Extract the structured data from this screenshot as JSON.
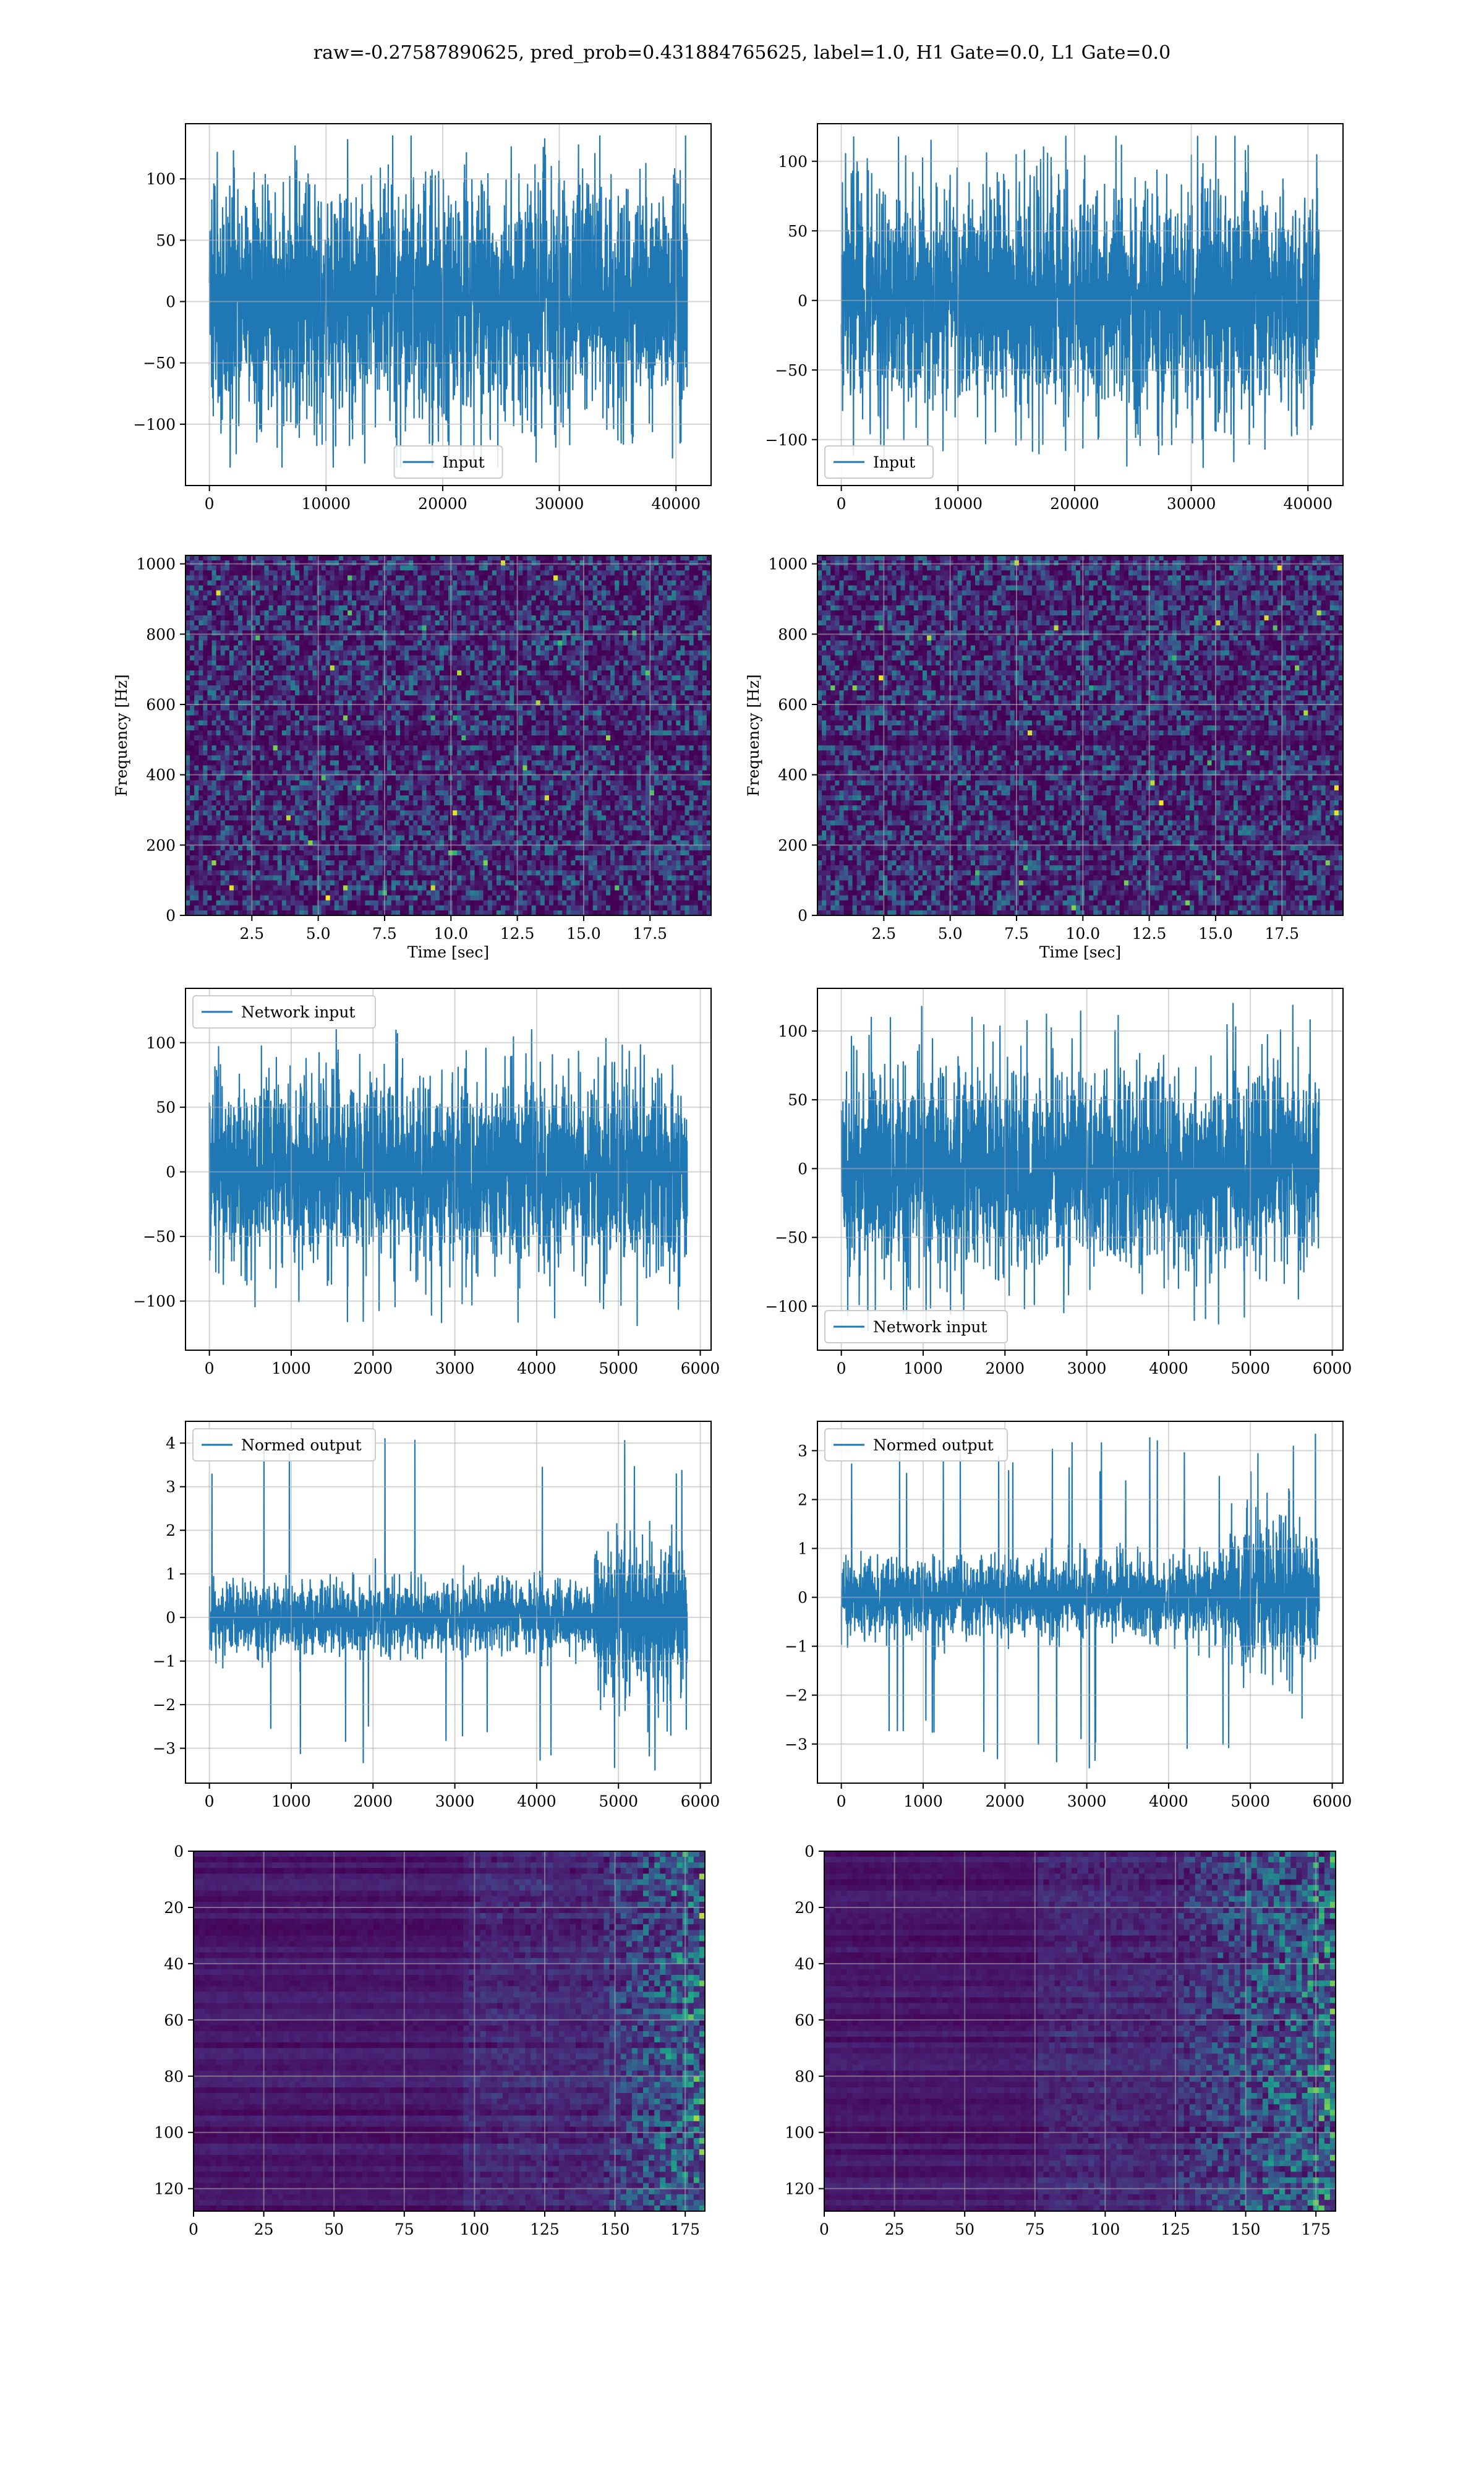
{
  "figure": {
    "title": "raw=-0.27587890625, pred_prob=0.431884765625, label=1.0, H1 Gate=0.0, L1 Gate=0.0",
    "line_color": "#1f77b4",
    "colormap": "viridis"
  },
  "chart_data": [
    {
      "id": "h1-input",
      "type": "line",
      "series": [
        {
          "name": "Input"
        }
      ],
      "legend": "lower-center",
      "x_range": [
        0,
        40960
      ],
      "xlim": [
        -2048,
        43008
      ],
      "ylim": [
        -150,
        145
      ],
      "amplitude": 48,
      "peak_range": [
        -135,
        135
      ],
      "xticks": [
        0,
        10000,
        20000,
        30000,
        40000
      ],
      "yticks": [
        -100,
        -50,
        0,
        50,
        100
      ],
      "xtick_labels": [
        "0",
        "10000",
        "20000",
        "30000",
        "40000"
      ],
      "ytick_labels": [
        "−100",
        "−50",
        "0",
        "50",
        "100"
      ],
      "grid": true
    },
    {
      "id": "l1-input",
      "type": "line",
      "series": [
        {
          "name": "Input"
        }
      ],
      "legend": "lower-left",
      "x_range": [
        0,
        40960
      ],
      "xlim": [
        -2048,
        43008
      ],
      "ylim": [
        -133,
        127
      ],
      "amplitude": 40,
      "peak_range": [
        -120,
        118
      ],
      "xticks": [
        0,
        10000,
        20000,
        30000,
        40000
      ],
      "yticks": [
        -100,
        -50,
        0,
        50,
        100
      ],
      "xtick_labels": [
        "0",
        "10000",
        "20000",
        "30000",
        "40000"
      ],
      "ytick_labels": [
        "−100",
        "−50",
        "0",
        "50",
        "100"
      ],
      "grid": true
    },
    {
      "id": "h1-spectrogram",
      "type": "heatmap",
      "xlabel": "Time [sec]",
      "ylabel": "Frequency [Hz]",
      "xlim": [
        0,
        19.8
      ],
      "ylim": [
        0,
        1024
      ],
      "xticks": [
        2.5,
        5,
        7.5,
        10,
        12.5,
        15,
        17.5
      ],
      "yticks": [
        0,
        200,
        400,
        600,
        800,
        1000
      ],
      "xtick_labels": [
        "2.5",
        "5.0",
        "7.5",
        "10.0",
        "12.5",
        "15.0",
        "17.5"
      ],
      "ytick_labels": [
        "0",
        "200",
        "400",
        "600",
        "800",
        "1000"
      ],
      "grid": true
    },
    {
      "id": "l1-spectrogram",
      "type": "heatmap",
      "xlabel": "Time [sec]",
      "ylabel": "Frequency [Hz]",
      "xlim": [
        0,
        19.8
      ],
      "ylim": [
        0,
        1024
      ],
      "xticks": [
        2.5,
        5,
        7.5,
        10,
        12.5,
        15,
        17.5
      ],
      "yticks": [
        0,
        200,
        400,
        600,
        800,
        1000
      ],
      "xtick_labels": [
        "2.5",
        "5.0",
        "7.5",
        "10.0",
        "12.5",
        "15.0",
        "17.5"
      ],
      "ytick_labels": [
        "0",
        "200",
        "400",
        "600",
        "800",
        "1000"
      ],
      "grid": true
    },
    {
      "id": "h1-network-input",
      "type": "line",
      "series": [
        {
          "name": "Network input"
        }
      ],
      "legend": "upper-left",
      "x_range": [
        0,
        5840
      ],
      "xlim": [
        -292,
        6132
      ],
      "ylim": [
        -138,
        142
      ],
      "amplitude": 35,
      "peak_range": [
        -120,
        110
      ],
      "xticks": [
        0,
        1000,
        2000,
        3000,
        4000,
        5000,
        6000
      ],
      "yticks": [
        -100,
        -50,
        0,
        50,
        100
      ],
      "xtick_labels": [
        "0",
        "1000",
        "2000",
        "3000",
        "4000",
        "5000",
        "6000"
      ],
      "ytick_labels": [
        "−100",
        "−50",
        "0",
        "50",
        "100"
      ],
      "grid": true
    },
    {
      "id": "l1-network-input",
      "type": "line",
      "series": [
        {
          "name": "Network input"
        }
      ],
      "legend": "lower-left",
      "x_range": [
        0,
        5840
      ],
      "xlim": [
        -292,
        6132
      ],
      "ylim": [
        -132,
        131
      ],
      "amplitude": 34,
      "peak_range": [
        -118,
        120
      ],
      "xticks": [
        0,
        1000,
        2000,
        3000,
        4000,
        5000,
        6000
      ],
      "yticks": [
        -100,
        -50,
        0,
        50,
        100
      ],
      "xtick_labels": [
        "0",
        "1000",
        "2000",
        "3000",
        "4000",
        "5000",
        "6000"
      ],
      "ytick_labels": [
        "−100",
        "−50",
        "0",
        "50",
        "100"
      ],
      "grid": true
    },
    {
      "id": "h1-normed-output",
      "type": "line",
      "series": [
        {
          "name": "Normed output"
        }
      ],
      "legend": "upper-left",
      "x_range": [
        0,
        5840
      ],
      "xlim": [
        -292,
        6132
      ],
      "ylim": [
        -3.8,
        4.5
      ],
      "amplitude": 0.4,
      "loud_segment": {
        "from": 4700,
        "to": 5840,
        "amplitude": 0.9
      },
      "peak_range": [
        -3.5,
        4.2
      ],
      "xticks": [
        0,
        1000,
        2000,
        3000,
        4000,
        5000,
        6000
      ],
      "yticks": [
        -3,
        -2,
        -1,
        0,
        1,
        2,
        3,
        4
      ],
      "xtick_labels": [
        "0",
        "1000",
        "2000",
        "3000",
        "4000",
        "5000",
        "6000"
      ],
      "ytick_labels": [
        "−3",
        "−2",
        "−1",
        "0",
        "1",
        "2",
        "3",
        "4"
      ],
      "grid": true
    },
    {
      "id": "l1-normed-output",
      "type": "line",
      "series": [
        {
          "name": "Normed output"
        }
      ],
      "legend": "upper-left",
      "x_range": [
        0,
        5840
      ],
      "xlim": [
        -292,
        6132
      ],
      "ylim": [
        -3.8,
        3.6
      ],
      "amplitude": 0.38,
      "loud_segment": {
        "from": 4700,
        "to": 5840,
        "amplitude": 0.75
      },
      "peak_range": [
        -3.5,
        3.4
      ],
      "xticks": [
        0,
        1000,
        2000,
        3000,
        4000,
        5000,
        6000
      ],
      "yticks": [
        -3,
        -2,
        -1,
        0,
        1,
        2,
        3
      ],
      "xtick_labels": [
        "0",
        "1000",
        "2000",
        "3000",
        "4000",
        "5000",
        "6000"
      ],
      "ytick_labels": [
        "−3",
        "−2",
        "−1",
        "0",
        "1",
        "2",
        "3"
      ],
      "grid": true
    },
    {
      "id": "h1-feature-map",
      "type": "heatmap",
      "xlim": [
        0,
        182
      ],
      "ylim": [
        128,
        0
      ],
      "bright_from": 145,
      "xticks": [
        0,
        25,
        50,
        75,
        100,
        125,
        150,
        175
      ],
      "yticks": [
        0,
        20,
        40,
        60,
        80,
        100,
        120
      ],
      "xtick_labels": [
        "0",
        "25",
        "50",
        "75",
        "100",
        "125",
        "150",
        "175"
      ],
      "ytick_labels": [
        "0",
        "20",
        "40",
        "60",
        "80",
        "100",
        "120"
      ],
      "grid": true
    },
    {
      "id": "l1-feature-map",
      "type": "heatmap",
      "xlim": [
        0,
        182
      ],
      "ylim": [
        128,
        0
      ],
      "bright_from": 125,
      "xticks": [
        0,
        25,
        50,
        75,
        100,
        125,
        150,
        175
      ],
      "yticks": [
        0,
        20,
        40,
        60,
        80,
        100,
        120
      ],
      "xtick_labels": [
        "0",
        "25",
        "50",
        "75",
        "100",
        "125",
        "150",
        "175"
      ],
      "ytick_labels": [
        "0",
        "20",
        "40",
        "60",
        "80",
        "100",
        "120"
      ],
      "grid": true
    }
  ]
}
